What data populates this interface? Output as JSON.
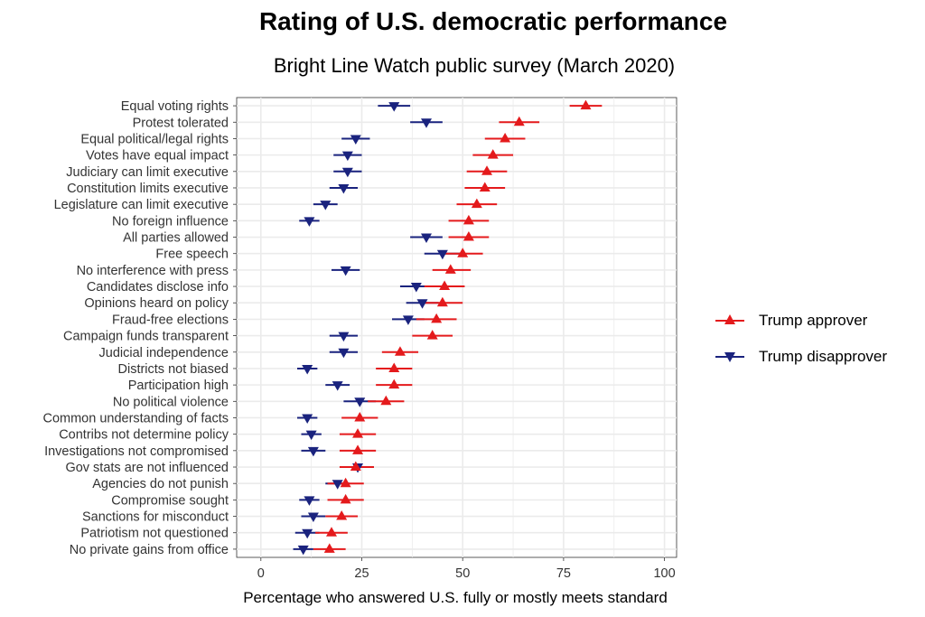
{
  "chart_data": {
    "type": "scatter",
    "title": "Rating of U.S. democratic performance",
    "subtitle": "Bright Line Watch public survey (March 2020)",
    "xlabel": "Percentage who answered U.S. fully or mostly meets standard",
    "ylabel": "",
    "xlim": [
      -6,
      103
    ],
    "xticks": [
      0,
      25,
      50,
      75,
      100
    ],
    "grid": true,
    "legend_position": "right",
    "categories": [
      "Equal voting rights",
      "Protest tolerated",
      "Equal political/legal rights",
      "Votes have equal impact",
      "Judiciary can limit executive",
      "Constitution limits executive",
      "Legislature can limit executive",
      "No foreign influence",
      "All parties allowed",
      "Free speech",
      "No interference with press",
      "Candidates disclose info",
      "Opinions heard on policy",
      "Fraud-free elections",
      "Campaign funds transparent",
      "Judicial independence",
      "Districts not biased",
      "Participation high",
      "No political violence",
      "Common understanding of facts",
      "Contribs not determine policy",
      "Investigations not compromised",
      "Gov stats are not influenced",
      "Agencies do not punish",
      "Compromise sought",
      "Sanctions for misconduct",
      "Patriotism not questioned",
      "No private gains from office"
    ],
    "series": [
      {
        "name": "Trump approver",
        "color": "#e41a1c",
        "marker": "triangle-up",
        "values": [
          80.5,
          64,
          60.5,
          57.5,
          56,
          55.5,
          53.5,
          51.5,
          51.5,
          50,
          47,
          45.5,
          45,
          43.5,
          42.5,
          34.5,
          33,
          33,
          31,
          24.5,
          24,
          24,
          23.5,
          21,
          21,
          20,
          17.5,
          17
        ],
        "lower": [
          76.5,
          59,
          55.5,
          52.5,
          51,
          50.5,
          48.5,
          46.5,
          46.5,
          45,
          42.5,
          40.5,
          40.5,
          38.5,
          37.5,
          30,
          28.5,
          28.5,
          26.5,
          20,
          19.5,
          19.5,
          19.5,
          16.5,
          16.5,
          16,
          13.5,
          13
        ],
        "upper": [
          84.5,
          69,
          65.5,
          62.5,
          61,
          60.5,
          58.5,
          56.5,
          56.5,
          55,
          52,
          50.5,
          50,
          48.5,
          47.5,
          39,
          37.5,
          37.5,
          35.5,
          29,
          28.5,
          28.5,
          28,
          25.5,
          25.5,
          24,
          21.5,
          21
        ]
      },
      {
        "name": "Trump disapprover",
        "color": "#1a237e",
        "marker": "triangle-down",
        "values": [
          33,
          41,
          23.5,
          21.5,
          21.5,
          20.5,
          16,
          12,
          41,
          45,
          21,
          38.5,
          40,
          36.5,
          20.5,
          20.5,
          11.5,
          19,
          24.5,
          11.5,
          12.5,
          13,
          24,
          19,
          12,
          13,
          11.5,
          10.5
        ],
        "lower": [
          29,
          37,
          20,
          18,
          18,
          17,
          13,
          9.5,
          37,
          40.5,
          17.5,
          34.5,
          36,
          32.5,
          17,
          17,
          9,
          16,
          20.5,
          9,
          10,
          10,
          20,
          16,
          9.5,
          10,
          8.5,
          8
        ],
        "upper": [
          37,
          45,
          27,
          25,
          25,
          24,
          19,
          14.5,
          45,
          49.5,
          24.5,
          42.5,
          44,
          40.5,
          24,
          24,
          14,
          22,
          28.5,
          14,
          15,
          16,
          28,
          22,
          14.5,
          16,
          14.5,
          13
        ]
      }
    ]
  }
}
